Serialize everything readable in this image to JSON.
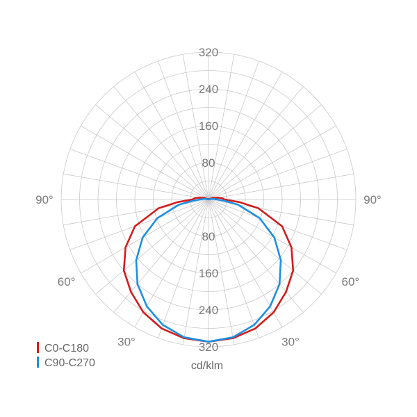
{
  "chart_data": {
    "type": "polar",
    "unit_label": "cd/klm",
    "radial_ticks": [
      80,
      160,
      240,
      320
    ],
    "radial_tick_labels": [
      "80",
      "160",
      "240",
      "320"
    ],
    "rmax": 320,
    "angle_labels": [
      "90°",
      "60°",
      "30°",
      "30°",
      "60°",
      "90°"
    ],
    "grid": true,
    "legend_position": "bottom-left",
    "series": [
      {
        "name": "C0-C180",
        "color": "#d41c1c",
        "angles": [
          0,
          10,
          20,
          30,
          40,
          50,
          60,
          70,
          80,
          85,
          90,
          95,
          100,
          110,
          120
        ],
        "values": [
          309,
          306,
          298,
          283,
          262,
          240,
          208,
          170,
          110,
          68,
          35,
          30,
          22,
          10,
          2
        ]
      },
      {
        "name": "C90-C270",
        "color": "#1e8fe0",
        "angles": [
          0,
          10,
          20,
          30,
          40,
          50,
          60,
          70,
          80,
          85,
          90,
          95,
          100,
          110,
          120
        ],
        "values": [
          309,
          304,
          290,
          268,
          240,
          205,
          165,
          118,
          65,
          35,
          18,
          12,
          6,
          2,
          0
        ]
      }
    ]
  }
}
